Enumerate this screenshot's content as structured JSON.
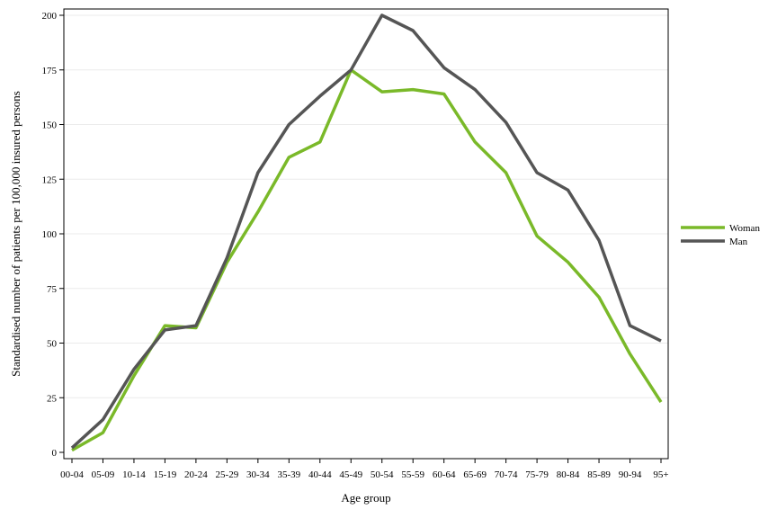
{
  "chart_data": {
    "type": "line",
    "title": "",
    "xlabel": "Age group",
    "ylabel": "Standardised number of patients per 100,000 insured persons",
    "categories": [
      "00-04",
      "05-09",
      "10-14",
      "15-19",
      "20-24",
      "25-29",
      "30-34",
      "35-39",
      "40-44",
      "45-49",
      "50-54",
      "55-59",
      "60-64",
      "65-69",
      "70-74",
      "75-79",
      "80-84",
      "85-89",
      "90-94",
      "95+"
    ],
    "ylim": [
      0,
      200
    ],
    "yticks": [
      0,
      25,
      50,
      75,
      100,
      125,
      150,
      175,
      200
    ],
    "grid": true,
    "legend_position": "right",
    "series": [
      {
        "name": "Woman",
        "color": "#7ab929",
        "values": [
          1,
          9,
          35,
          58,
          57,
          87,
          110,
          135,
          142,
          175,
          165,
          166,
          164,
          142,
          128,
          99,
          87,
          71,
          45,
          23
        ]
      },
      {
        "name": "Man",
        "color": "#555555",
        "values": [
          2,
          15,
          38,
          56,
          58,
          89,
          128,
          150,
          163,
          175,
          200,
          193,
          176,
          166,
          151,
          128,
          120,
          97,
          58,
          51
        ]
      }
    ]
  }
}
